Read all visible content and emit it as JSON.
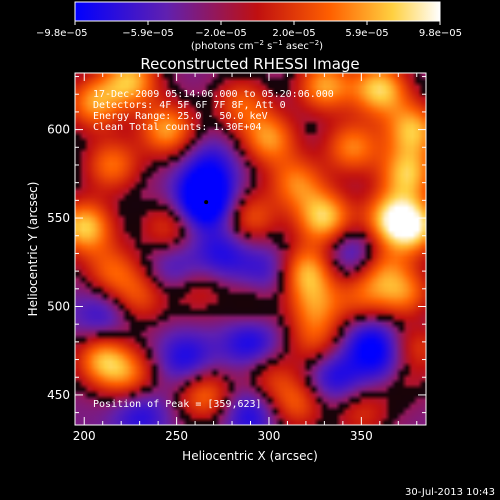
{
  "chart_data": {
    "type": "heatmap",
    "title": "Reconstructed RHESSI Image",
    "xlabel": "Heliocentric X (arcsec)",
    "ylabel": "Heliocentric Y (arcsec)",
    "xlim": [
      195,
      385
    ],
    "ylim": [
      433,
      632
    ],
    "x_ticks": [
      "200",
      "250",
      "300",
      "350"
    ],
    "x_tick_values": [
      200,
      250,
      300,
      350
    ],
    "y_ticks": [
      "450",
      "500",
      "550",
      "600"
    ],
    "y_tick_values": [
      450,
      500,
      550,
      600
    ],
    "colorbar": {
      "labels": [
        "−9.8e−05",
        "−5.9e−05",
        "−2.0e−05",
        "2.0e−05",
        "5.9e−05",
        "9.8e−05"
      ],
      "range": [
        -9.8e-05,
        9.8e-05
      ],
      "unit_main": "(photons cm",
      "unit_exp1": "−2",
      "unit_mid": " s",
      "unit_exp2": "−1",
      "unit_mid2": " asec",
      "unit_exp3": "−2",
      "unit_end": ")",
      "colors": [
        "#0000ff",
        "#6020b0",
        "#c01010",
        "#ff6000",
        "#ffd040",
        "#ffffff"
      ]
    },
    "annotations": [
      "17-Dec-2009 05:14:06.000 to 05:20:06.000",
      "Detectors: 4F 5F 6F 7F 8F, Att 0",
      "Energy Range: 25.0 - 50.0 keV",
      "Clean    Total counts: 1.30E+04"
    ],
    "peak_label": "Position of Peak = [359,623]",
    "peak": [
      359,
      623
    ],
    "blobs": [
      {
        "x": 200,
        "y": 545,
        "v": 1.0
      },
      {
        "x": 205,
        "y": 615,
        "v": 0.8
      },
      {
        "x": 225,
        "y": 628,
        "v": 0.9
      },
      {
        "x": 245,
        "y": 600,
        "v": 0.85
      },
      {
        "x": 215,
        "y": 580,
        "v": 0.7
      },
      {
        "x": 285,
        "y": 615,
        "v": 0.6
      },
      {
        "x": 300,
        "y": 595,
        "v": 0.8
      },
      {
        "x": 330,
        "y": 625,
        "v": 0.85
      },
      {
        "x": 360,
        "y": 623,
        "v": 1.0
      },
      {
        "x": 378,
        "y": 600,
        "v": 0.9
      },
      {
        "x": 345,
        "y": 590,
        "v": 0.75
      },
      {
        "x": 315,
        "y": 570,
        "v": 0.7
      },
      {
        "x": 330,
        "y": 550,
        "v": 1.0
      },
      {
        "x": 365,
        "y": 550,
        "v": 0.8
      },
      {
        "x": 378,
        "y": 545,
        "v": 1.0
      },
      {
        "x": 375,
        "y": 575,
        "v": 0.9
      },
      {
        "x": 290,
        "y": 550,
        "v": 0.6
      },
      {
        "x": 245,
        "y": 545,
        "v": 0.5
      },
      {
        "x": 215,
        "y": 520,
        "v": 0.6
      },
      {
        "x": 230,
        "y": 505,
        "v": 0.55
      },
      {
        "x": 320,
        "y": 520,
        "v": 0.9
      },
      {
        "x": 325,
        "y": 500,
        "v": 0.6
      },
      {
        "x": 350,
        "y": 505,
        "v": 0.5
      },
      {
        "x": 362,
        "y": 520,
        "v": 0.6
      },
      {
        "x": 375,
        "y": 505,
        "v": 0.7
      },
      {
        "x": 260,
        "y": 510,
        "v": 0.45
      },
      {
        "x": 210,
        "y": 470,
        "v": 0.85
      },
      {
        "x": 225,
        "y": 460,
        "v": 0.6
      },
      {
        "x": 265,
        "y": 450,
        "v": 0.7
      },
      {
        "x": 300,
        "y": 460,
        "v": 0.45
      },
      {
        "x": 315,
        "y": 445,
        "v": 0.6
      },
      {
        "x": 325,
        "y": 480,
        "v": 0.5
      },
      {
        "x": 380,
        "y": 480,
        "v": 0.7
      },
      {
        "x": 370,
        "y": 460,
        "v": 0.55
      },
      {
        "x": 350,
        "y": 440,
        "v": 0.45
      },
      {
        "x": 290,
        "y": 500,
        "v": 0.35
      },
      {
        "x": 265,
        "y": 560,
        "v": -1.0
      },
      {
        "x": 268,
        "y": 580,
        "v": -0.4
      },
      {
        "x": 275,
        "y": 530,
        "v": -0.45
      },
      {
        "x": 250,
        "y": 520,
        "v": -0.4
      },
      {
        "x": 255,
        "y": 470,
        "v": -0.5
      },
      {
        "x": 290,
        "y": 480,
        "v": -0.55
      },
      {
        "x": 300,
        "y": 520,
        "v": -0.4
      },
      {
        "x": 335,
        "y": 460,
        "v": -0.5
      },
      {
        "x": 355,
        "y": 480,
        "v": -0.55
      },
      {
        "x": 365,
        "y": 465,
        "v": -0.6
      },
      {
        "x": 345,
        "y": 530,
        "v": -0.45
      },
      {
        "x": 210,
        "y": 495,
        "v": -0.4
      },
      {
        "x": 230,
        "y": 440,
        "v": -0.45
      },
      {
        "x": 290,
        "y": 440,
        "v": -0.5
      },
      {
        "x": 380,
        "y": 490,
        "v": -0.4
      }
    ]
  },
  "footer": {
    "timestamp": "30-Jul-2013 10:43"
  }
}
